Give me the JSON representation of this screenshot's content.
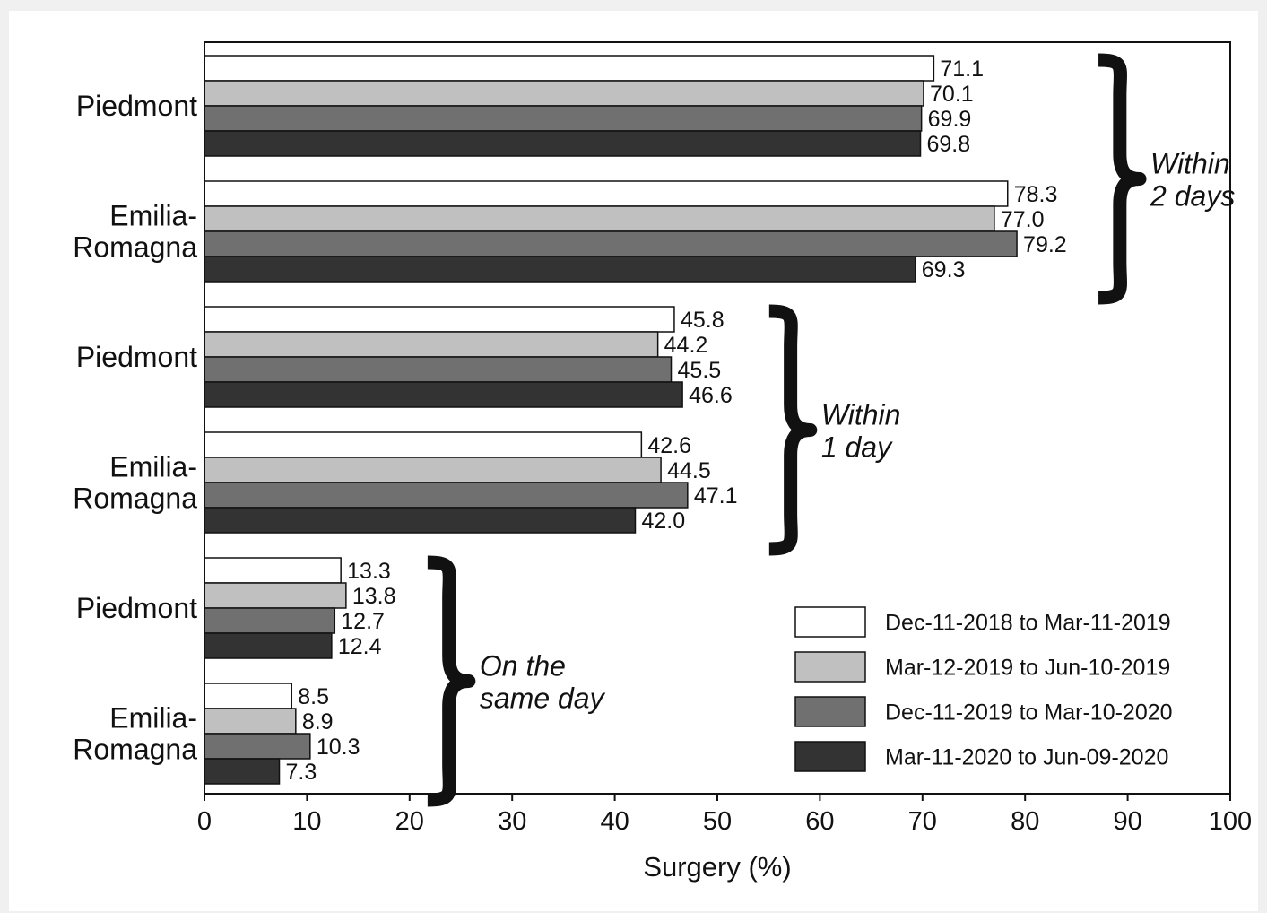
{
  "chart_data": {
    "type": "bar",
    "orientation": "horizontal",
    "xlabel": "Surgery (%)",
    "xlim": [
      0,
      100
    ],
    "xticks": [
      "0",
      "10",
      "20",
      "30",
      "40",
      "50",
      "60",
      "70",
      "80",
      "90",
      "100"
    ],
    "grid": false,
    "legend_position": "bottom-right",
    "series": [
      {
        "name": "Dec-11-2018 to Mar-11-2019",
        "color": "#ffffff"
      },
      {
        "name": "Mar-12-2019 to Jun-10-2019",
        "color": "#c0c0c0"
      },
      {
        "name": "Dec-11-2019 to Mar-10-2020",
        "color": "#707070"
      },
      {
        "name": "Mar-11-2020 to Jun-09-2020",
        "color": "#333333"
      }
    ],
    "groups": [
      {
        "label_lines": [
          "Within",
          "2 days"
        ],
        "categories": [
          {
            "label_lines": [
              "Piedmont"
            ],
            "values": [
              71.1,
              70.1,
              69.9,
              69.8
            ],
            "labels": [
              "71.1",
              "70.1",
              "69.9",
              "69.8"
            ]
          },
          {
            "label_lines": [
              "Emilia-",
              "Romagna"
            ],
            "values": [
              78.3,
              77.0,
              79.2,
              69.3
            ],
            "labels": [
              "78.3",
              "77.0",
              "79.2",
              "69.3"
            ]
          }
        ]
      },
      {
        "label_lines": [
          "Within",
          "1 day"
        ],
        "categories": [
          {
            "label_lines": [
              "Piedmont"
            ],
            "values": [
              45.8,
              44.2,
              45.5,
              46.6
            ],
            "labels": [
              "45.8",
              "44.2",
              "45.5",
              "46.6"
            ]
          },
          {
            "label_lines": [
              "Emilia-",
              "Romagna"
            ],
            "values": [
              42.6,
              44.5,
              47.1,
              42.0
            ],
            "labels": [
              "42.6",
              "44.5",
              "47.1",
              "42.0"
            ]
          }
        ]
      },
      {
        "label_lines": [
          "On the",
          "same day"
        ],
        "categories": [
          {
            "label_lines": [
              "Piedmont"
            ],
            "values": [
              13.3,
              13.8,
              12.7,
              12.4
            ],
            "labels": [
              "13.3",
              "13.8",
              "12.7",
              "12.4"
            ]
          },
          {
            "label_lines": [
              "Emilia-",
              "Romagna"
            ],
            "values": [
              8.5,
              8.9,
              10.3,
              7.3
            ],
            "labels": [
              "8.5",
              "8.9",
              "10.3",
              "7.3"
            ]
          }
        ]
      }
    ]
  }
}
